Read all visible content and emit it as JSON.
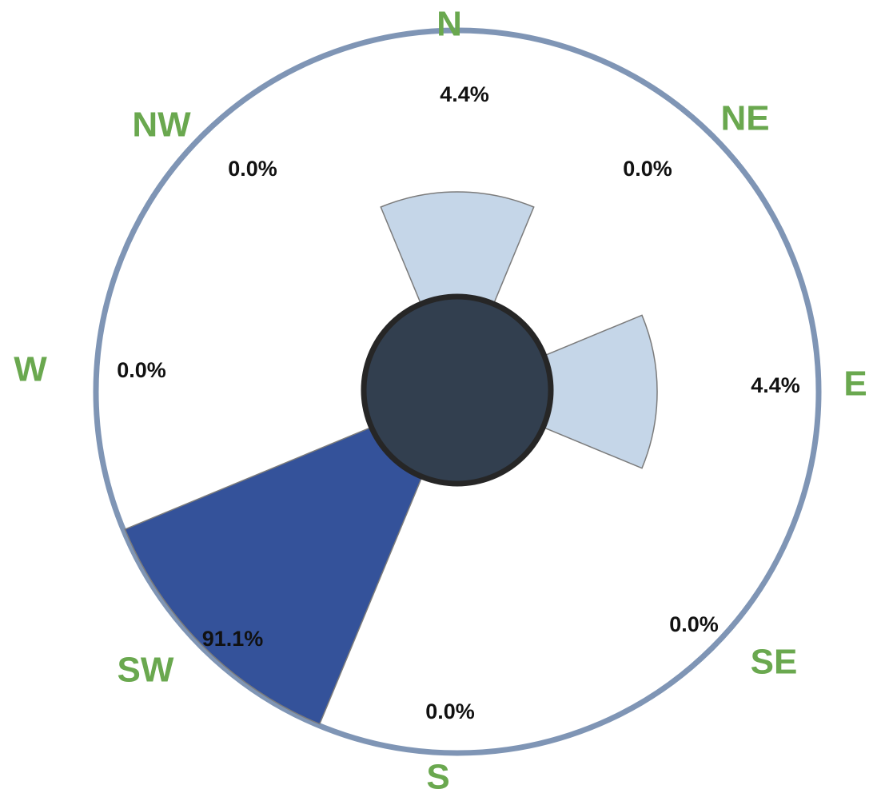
{
  "chart_data": {
    "type": "wind-rose",
    "directions": [
      {
        "key": "N",
        "label": "N",
        "bearing": 0,
        "value": 4.4,
        "display": "4.4%"
      },
      {
        "key": "NE",
        "label": "NE",
        "bearing": 45,
        "value": 0.0,
        "display": "0.0%"
      },
      {
        "key": "E",
        "label": "E",
        "bearing": 90,
        "value": 4.4,
        "display": "4.4%"
      },
      {
        "key": "SE",
        "label": "SE",
        "bearing": 135,
        "value": 0.0,
        "display": "0.0%"
      },
      {
        "key": "S",
        "label": "S",
        "bearing": 180,
        "value": 0.0,
        "display": "0.0%"
      },
      {
        "key": "SW",
        "label": "SW",
        "bearing": 225,
        "value": 91.1,
        "display": "91.1%"
      },
      {
        "key": "W",
        "label": "W",
        "bearing": 270,
        "value": 0.0,
        "display": "0.0%"
      },
      {
        "key": "NW",
        "label": "NW",
        "bearing": 315,
        "value": 0.0,
        "display": "0.0%"
      }
    ],
    "unit": "%",
    "colors": {
      "dominant_sector": "#34529a",
      "minor_sector": "#c5d6e8",
      "sector_stroke": "#7b7b7b",
      "outer_ring": "#7f95b5",
      "center_disc": "#323f4f",
      "center_disc_stroke": "#262626",
      "direction_label": "#6aa84f",
      "value_label": "#111111"
    }
  }
}
